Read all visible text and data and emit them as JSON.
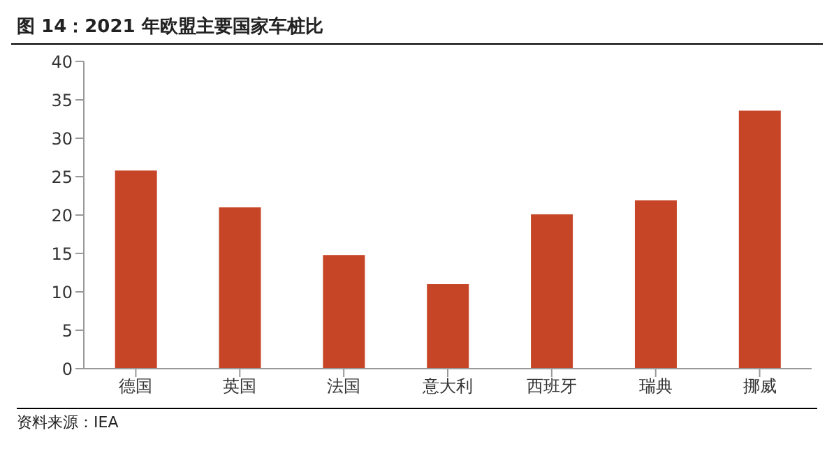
{
  "chart_data": {
    "type": "bar",
    "title": "图 14：2021 年欧盟主要国家车桩比",
    "categories": [
      "德国",
      "英国",
      "法国",
      "意大利",
      "西班牙",
      "瑞典",
      "挪威"
    ],
    "values": [
      25.8,
      21.0,
      14.8,
      11.0,
      20.1,
      21.9,
      33.6
    ],
    "color": "#c64526",
    "ylim": [
      0,
      40
    ],
    "yticks": [
      0,
      5,
      10,
      15,
      20,
      25,
      30,
      35,
      40
    ],
    "grid": false,
    "annotations": [
      "资料来源：IEA"
    ]
  }
}
